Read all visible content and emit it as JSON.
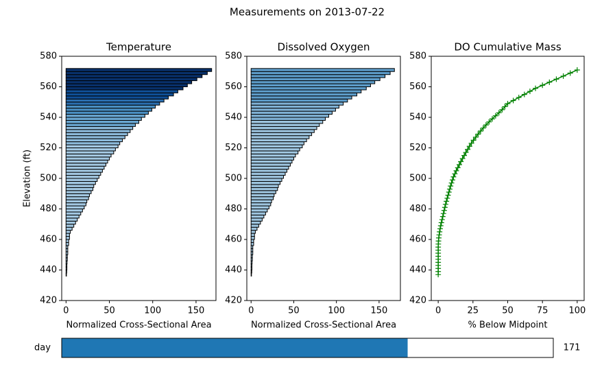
{
  "title": "Measurements on 2013-07-22",
  "chart_data": [
    {
      "type": "barh",
      "title": "Temperature",
      "xlabel": "Normalized Cross-Sectional Area",
      "ylabel": "Elevation (ft)",
      "y": [
        437,
        439,
        441,
        443,
        445,
        447,
        449,
        451,
        453,
        455,
        457,
        459,
        461,
        463,
        465,
        467,
        469,
        471,
        473,
        475,
        477,
        479,
        481,
        483,
        485,
        487,
        489,
        491,
        493,
        495,
        497,
        499,
        501,
        503,
        505,
        507,
        509,
        511,
        513,
        515,
        517,
        519,
        521,
        523,
        525,
        527,
        529,
        531,
        533,
        535,
        537,
        539,
        541,
        543,
        545,
        547,
        549,
        551,
        553,
        555,
        557,
        559,
        561,
        563,
        565,
        567,
        569,
        571
      ],
      "values": [
        0.5,
        0.8,
        1,
        1,
        1.2,
        1.5,
        1.5,
        2,
        2,
        2,
        3,
        3,
        4,
        4,
        5,
        7,
        9,
        11,
        13,
        15,
        17,
        19,
        21,
        23,
        24,
        26,
        27,
        29,
        31,
        32,
        34,
        36,
        38,
        40,
        42,
        44,
        46,
        48,
        50,
        52,
        55,
        57,
        60,
        62,
        65,
        68,
        71,
        74,
        77,
        80,
        84,
        87,
        91,
        95,
        99,
        103,
        108,
        113,
        118,
        124,
        129,
        135,
        140,
        145,
        151,
        157,
        163,
        168
      ],
      "bar_height": 2,
      "edge_color": "#000000",
      "colors": [
        "#a3c8e2",
        "#a3c8e2",
        "#a3c8e2",
        "#a3c8e2",
        "#a3c8e2",
        "#a3c8e2",
        "#a3c8e2",
        "#a3c8e2",
        "#a3c8e2",
        "#a3c8e2",
        "#a3c8e2",
        "#a3c8e2",
        "#a3c8e2",
        "#a3c8e2",
        "#a3c8e2",
        "#a3c8e2",
        "#a3c8e2",
        "#a3c8e2",
        "#a3c8e2",
        "#a3c8e2",
        "#a3c8e2",
        "#a3c8e2",
        "#a3c8e2",
        "#a3c8e2",
        "#a3c8e2",
        "#a3c8e2",
        "#a3c8e2",
        "#a3c8e2",
        "#a3c8e2",
        "#a3c8e2",
        "#a3c8e2",
        "#a3c8e2",
        "#a3c8e2",
        "#a3c8e2",
        "#a3c8e2",
        "#a3c8e2",
        "#a3c8e2",
        "#a3c8e2",
        "#a3c8e2",
        "#a3c8e2",
        "#a3c8e2",
        "#a3c8e2",
        "#a3c8e2",
        "#8dbbdc",
        "#8dbbdc",
        "#8dbbdc",
        "#8dbbdc",
        "#8dbbdc",
        "#8dbbdc",
        "#6aa8d3",
        "#6aa8d3",
        "#6aa8d3",
        "#6aa8d3",
        "#4a8fc3",
        "#4a8fc3",
        "#4a8fc3",
        "#2b6fb0",
        "#2b6fb0",
        "#0f4f96",
        "#0f4f96",
        "#0f4f96",
        "#08306b",
        "#08306b",
        "#08306b",
        "#08306b",
        "#08306b",
        "#08306b",
        "#08306b"
      ],
      "xlim": [
        -5,
        173
      ],
      "ylim": [
        420,
        580
      ],
      "xticks": [
        0,
        50,
        100,
        150
      ],
      "yticks": [
        420,
        440,
        460,
        480,
        500,
        520,
        540,
        560,
        580
      ]
    },
    {
      "type": "barh",
      "title": "Dissolved Oxygen",
      "xlabel": "Normalized Cross-Sectional Area",
      "y": [
        437,
        439,
        441,
        443,
        445,
        447,
        449,
        451,
        453,
        455,
        457,
        459,
        461,
        463,
        465,
        467,
        469,
        471,
        473,
        475,
        477,
        479,
        481,
        483,
        485,
        487,
        489,
        491,
        493,
        495,
        497,
        499,
        501,
        503,
        505,
        507,
        509,
        511,
        513,
        515,
        517,
        519,
        521,
        523,
        525,
        527,
        529,
        531,
        533,
        535,
        537,
        539,
        541,
        543,
        545,
        547,
        549,
        551,
        553,
        555,
        557,
        559,
        561,
        563,
        565,
        567,
        569,
        571
      ],
      "values": [
        0.5,
        0.8,
        1,
        1,
        1.2,
        1.5,
        1.5,
        2,
        2,
        2,
        3,
        3,
        4,
        4,
        5,
        7,
        9,
        11,
        13,
        15,
        17,
        19,
        21,
        23,
        24,
        26,
        27,
        29,
        31,
        32,
        34,
        36,
        38,
        40,
        42,
        44,
        46,
        48,
        50,
        52,
        55,
        57,
        60,
        62,
        65,
        68,
        71,
        74,
        77,
        80,
        84,
        87,
        91,
        95,
        99,
        103,
        108,
        113,
        118,
        124,
        129,
        135,
        140,
        145,
        151,
        157,
        163,
        168
      ],
      "bar_height": 2,
      "edge_color": "#000000",
      "colors": [
        "#9ec5df",
        "#9ec5df",
        "#9ec5df",
        "#9ec5df",
        "#9ec5df",
        "#9ec5df",
        "#9ec5df",
        "#9ec5df",
        "#9ec5df",
        "#9ec5df",
        "#9ec5df",
        "#9ec5df",
        "#9ec5df",
        "#9ec5df",
        "#9ec5df",
        "#9ec5df",
        "#9ec5df",
        "#9ec5df",
        "#9ec5df",
        "#9ec5df",
        "#9ec5df",
        "#9ec5df",
        "#9ec5df",
        "#9ec5df",
        "#9ec5df",
        "#9ec5df",
        "#9ec5df",
        "#9ec5df",
        "#9ec5df",
        "#9ec5df",
        "#9ec5df",
        "#9ec5df",
        "#9ec5df",
        "#9ec5df",
        "#9ec5df",
        "#9ec5df",
        "#9ec5df",
        "#9ec5df",
        "#9ec5df",
        "#9ec5df",
        "#9ec5df",
        "#9ec5df",
        "#9ec5df",
        "#9ec5df",
        "#9ec5df",
        "#9ec5df",
        "#9ec5df",
        "#9ec5df",
        "#9ec5df",
        "#9ec5df",
        "#9ec5df",
        "#80b2d6",
        "#80b2d6",
        "#80b2d6",
        "#80b2d6",
        "#80b2d6",
        "#80b2d6",
        "#5d9cc9",
        "#5d9cc9",
        "#5d9cc9",
        "#5d9cc9",
        "#5d9cc9",
        "#5d9cc9",
        "#5d9cc9",
        "#5d9cc9",
        "#5d9cc9",
        "#5d9cc9",
        "#5d9cc9"
      ],
      "xlim": [
        -5,
        175
      ],
      "ylim": [
        420,
        580
      ],
      "xticks": [
        0,
        50,
        100,
        150
      ],
      "yticks": [
        420,
        440,
        460,
        480,
        500,
        520,
        540,
        560,
        580
      ]
    },
    {
      "type": "line",
      "title": "DO Cumulative Mass",
      "xlabel": "% Below Midpoint",
      "color": "#008000",
      "marker": "+",
      "x": [
        0,
        0,
        0,
        0,
        0,
        0,
        0,
        0,
        0,
        0,
        0.1,
        0.2,
        0.4,
        0.7,
        1,
        1.4,
        1.8,
        2.3,
        2.8,
        3.3,
        3.8,
        4.3,
        4.8,
        5.3,
        5.9,
        6.5,
        7.1,
        7.7,
        8.3,
        8.9,
        9.6,
        10.3,
        11,
        12,
        13,
        14.1,
        15.2,
        16.3,
        17.5,
        18.7,
        19.9,
        21.2,
        22.5,
        23.9,
        25.4,
        27,
        28.7,
        30.5,
        32.4,
        34.4,
        36.6,
        38.9,
        41.3,
        43.7,
        46,
        48,
        50,
        54,
        58,
        62,
        66,
        70,
        75,
        80,
        85,
        90,
        95,
        100
      ],
      "y": [
        437,
        439,
        441,
        443,
        445,
        447,
        449,
        451,
        453,
        455,
        457,
        459,
        461,
        463,
        465,
        467,
        469,
        471,
        473,
        475,
        477,
        479,
        481,
        483,
        485,
        487,
        489,
        491,
        493,
        495,
        497,
        499,
        501,
        503,
        505,
        507,
        509,
        511,
        513,
        515,
        517,
        519,
        521,
        523,
        525,
        527,
        529,
        531,
        533,
        535,
        537,
        539,
        541,
        543,
        545,
        547,
        549,
        551,
        553,
        555,
        557,
        559,
        561,
        563,
        565,
        567,
        569,
        571
      ],
      "xlim": [
        -5,
        105
      ],
      "ylim": [
        420,
        580
      ],
      "xticks": [
        0,
        25,
        50,
        75,
        100
      ],
      "yticks": [
        420,
        440,
        460,
        480,
        500,
        520,
        540,
        560,
        580
      ]
    }
  ],
  "slider": {
    "label": "day",
    "value": 171,
    "min": 0,
    "max": 243,
    "color": "#1f77b4"
  }
}
